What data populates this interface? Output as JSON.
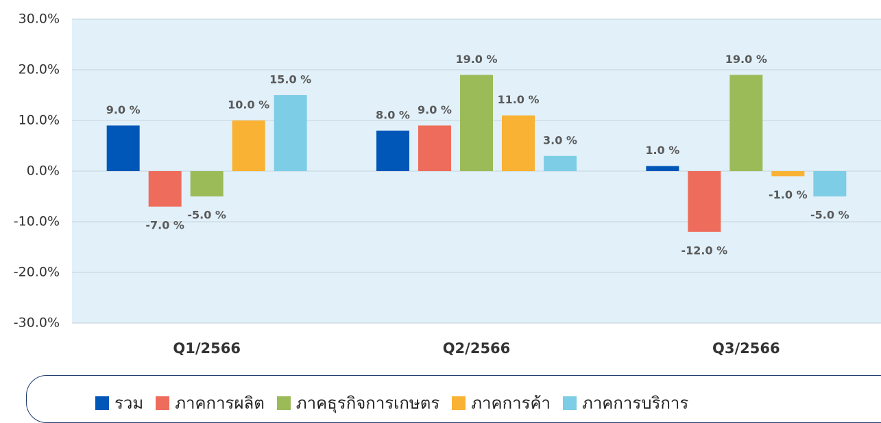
{
  "chart_data": {
    "type": "bar",
    "categories": [
      "Q1/2566",
      "Q2/2566",
      "Q3/2566"
    ],
    "series": [
      {
        "name": "รวม",
        "color": "#0057b8",
        "values": [
          9,
          8,
          1
        ],
        "value_labels": [
          "9.0 %",
          "8.0 %",
          "1.0 %"
        ]
      },
      {
        "name": "ภาคการผลิต",
        "color": "#ee6c5b",
        "values": [
          -7,
          9,
          -12
        ],
        "value_labels": [
          "-7.0 %",
          "9.0 %",
          "-12.0 %"
        ]
      },
      {
        "name": "ภาคธุรกิจการเกษตร",
        "color": "#9bbb59",
        "values": [
          -5,
          19,
          19
        ],
        "value_labels": [
          "-5.0 %",
          "19.0 %",
          "19.0 %"
        ]
      },
      {
        "name": "ภาคการค้า",
        "color": "#f9b233",
        "values": [
          10,
          11,
          -1
        ],
        "value_labels": [
          "10.0 %",
          "11.0 %",
          "-1.0 %"
        ]
      },
      {
        "name": "ภาคการบริการ",
        "color": "#7ecde6",
        "values": [
          15,
          3,
          -5
        ],
        "value_labels": [
          "15.0 %",
          "3.0 %",
          "-5.0 %"
        ]
      }
    ],
    "ylim": [
      -30,
      30
    ],
    "yticks": [
      {
        "value": -30,
        "label": "-30.0%"
      },
      {
        "value": -20,
        "label": "-20.0%"
      },
      {
        "value": -10,
        "label": "-10.0%"
      },
      {
        "value": 0,
        "label": "0.0%"
      },
      {
        "value": 10,
        "label": "10.0%"
      },
      {
        "value": 20,
        "label": "20.0%"
      },
      {
        "value": 30,
        "label": "30.0%"
      }
    ],
    "grid": true,
    "legend": "bottom"
  }
}
